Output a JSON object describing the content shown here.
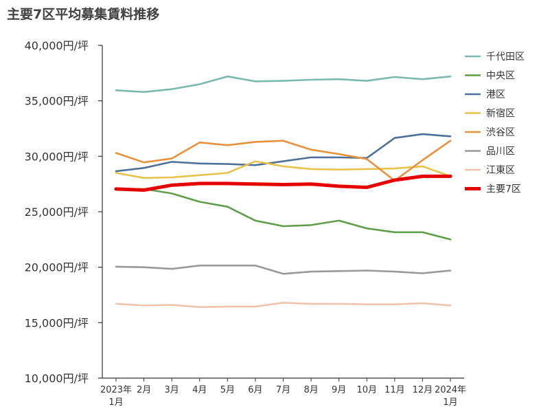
{
  "chart_data": {
    "type": "line",
    "title": "主要7区平均募集賃料推移",
    "xlabel": "",
    "ylabel": "",
    "categories": [
      [
        "2023年",
        "1月"
      ],
      [
        "2月"
      ],
      [
        "3月"
      ],
      [
        "4月"
      ],
      [
        "5月"
      ],
      [
        "6月"
      ],
      [
        "7月"
      ],
      [
        "8月"
      ],
      [
        "9月"
      ],
      [
        "10月"
      ],
      [
        "11月"
      ],
      [
        "12月"
      ],
      [
        "2024年",
        "1月"
      ]
    ],
    "ylim": [
      10000,
      40000
    ],
    "yticks": [
      {
        "value": 10000,
        "label": "10,000円/坪"
      },
      {
        "value": 15000,
        "label": "15,000円/坪"
      },
      {
        "value": 20000,
        "label": "20,000円/坪"
      },
      {
        "value": 25000,
        "label": "25,000円/坪"
      },
      {
        "value": 30000,
        "label": "30,000円/坪"
      },
      {
        "value": 35000,
        "label": "35,000円/坪"
      },
      {
        "value": 40000,
        "label": "40,000円/坪"
      }
    ],
    "grid": false,
    "legend_position": "right",
    "series": [
      {
        "name": "千代田区",
        "color": "#7ab8b0",
        "values": [
          35950,
          35800,
          36050,
          36500,
          37200,
          36750,
          36800,
          36900,
          36950,
          36800,
          37150,
          36950,
          37200
        ]
      },
      {
        "name": "中央区",
        "color": "#5f9e4a",
        "values": [
          27050,
          27050,
          26650,
          25900,
          25450,
          24200,
          23700,
          23800,
          24200,
          23500,
          23150,
          23150,
          22500
        ]
      },
      {
        "name": "港区",
        "color": "#4f7199",
        "values": [
          28650,
          28950,
          29500,
          29350,
          29300,
          29200,
          29550,
          29900,
          29900,
          29850,
          31650,
          32000,
          31800
        ]
      },
      {
        "name": "新宿区",
        "color": "#e6c34a",
        "values": [
          28500,
          28050,
          28100,
          28300,
          28500,
          29550,
          29100,
          28850,
          28800,
          28850,
          28900,
          29100,
          28200
        ]
      },
      {
        "name": "渋谷区",
        "color": "#e8913b",
        "values": [
          30300,
          29450,
          29800,
          31250,
          31000,
          31300,
          31400,
          30600,
          30200,
          29750,
          27800,
          29650,
          31400
        ]
      },
      {
        "name": "品川区",
        "color": "#999999",
        "values": [
          20050,
          20000,
          19850,
          20150,
          20150,
          20150,
          19400,
          19600,
          19650,
          19700,
          19600,
          19450,
          19700
        ]
      },
      {
        "name": "江東区",
        "color": "#eec4ad",
        "values": [
          16700,
          16550,
          16600,
          16400,
          16450,
          16450,
          16800,
          16700,
          16700,
          16650,
          16650,
          16750,
          16550
        ]
      },
      {
        "name": "主要7区",
        "color": "#e60000",
        "values": [
          27050,
          26950,
          27400,
          27550,
          27550,
          27500,
          27450,
          27500,
          27300,
          27200,
          27850,
          28200,
          28200
        ],
        "bold": true
      }
    ]
  }
}
